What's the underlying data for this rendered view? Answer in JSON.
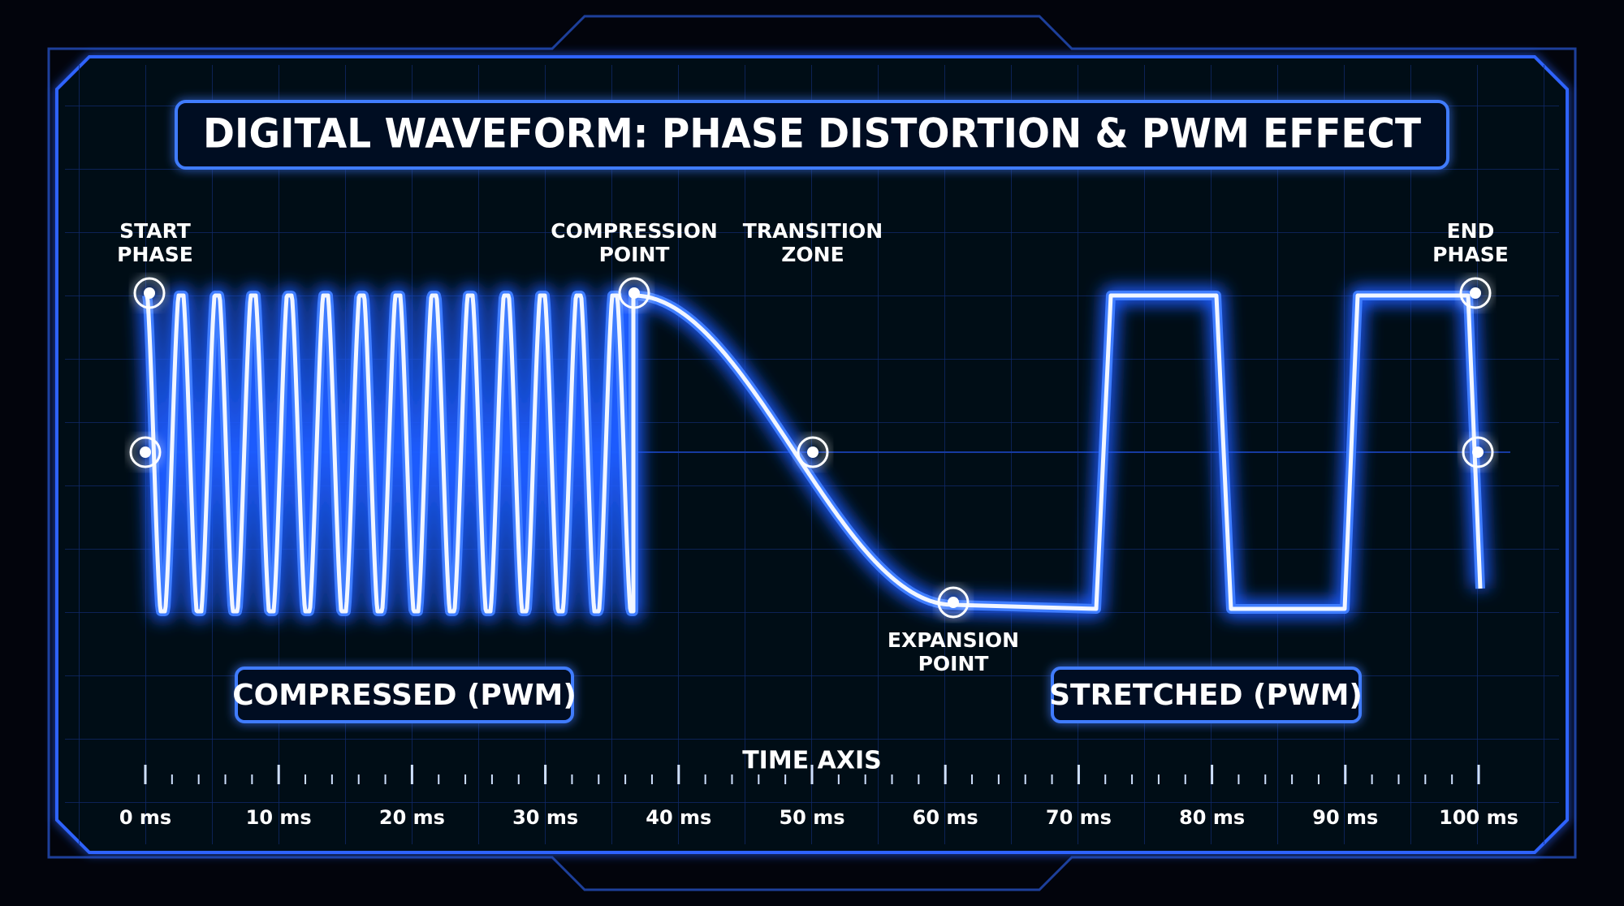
{
  "header": {
    "title": "DIGITAL WAVEFORM: PHASE DISTORTION & PWM EFFECT"
  },
  "annotations": [
    {
      "lines": [
        "START",
        "PHASE"
      ]
    },
    {
      "lines": [
        "COMPRESSION",
        "POINT"
      ]
    },
    {
      "lines": [
        "TRANSITION",
        "ZONE"
      ]
    },
    {
      "lines": [
        "EXPANSION",
        "POINT"
      ]
    },
    {
      "lines": [
        "END",
        "PHASE"
      ]
    }
  ],
  "regions": [
    "COMPRESSED (PWM)",
    "STRETCHED (PWM)"
  ],
  "axis": {
    "title": "TIME AXIS",
    "tick_labels": [
      "0 ms",
      "10 ms",
      "20 ms",
      "30 ms",
      "40 ms",
      "50 ms",
      "60 ms",
      "70 ms",
      "80 ms",
      "90 ms",
      "100 ms"
    ]
  }
}
